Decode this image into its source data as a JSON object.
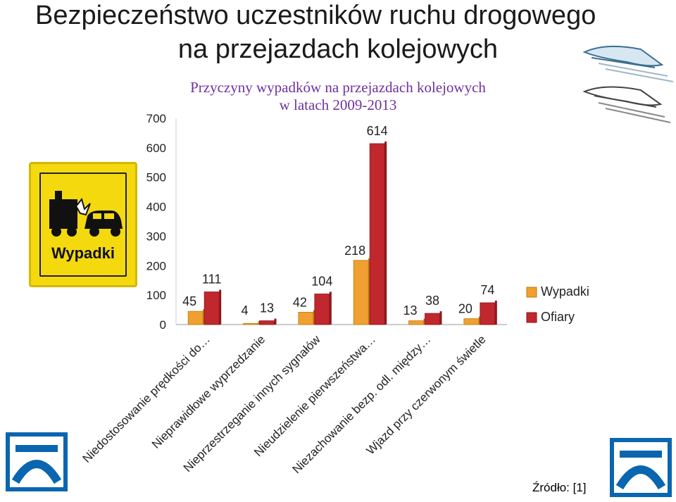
{
  "slide": {
    "title_line1": "Bezpieczeństwo uczestników ruchu drogowego",
    "title_line2": "na przejazdach kolejowych",
    "source": "Źródło: [1]",
    "sign_label": "Wypadki"
  },
  "icons": {
    "train_top": "train-icon",
    "train_bottom": "train-icon",
    "sign": "accident-sign-icon",
    "logo_left": "railway-logo-icon",
    "logo_right": "railway-logo-icon"
  },
  "colors": {
    "wypadki": "#f0a030",
    "ofiary": "#c0282e",
    "title": "#7030a0",
    "sign": "#f5d90f",
    "logo": "#0a66b0"
  },
  "chart_data": {
    "type": "bar",
    "title": "Przyczyny wypadków na przejazdach kolejowych w latach 2009-2013",
    "title_line1": "Przyczyny wypadków na przejazdach kolejowych",
    "title_line2": "w latach 2009-2013",
    "categories": [
      "Niedostosowanie prędkości do…",
      "Nieprawidłowe wyprzedzanie",
      "Nieprzestrzeganie innych sygnałów",
      "Nieudzielenie pierwszeństwa…",
      "Niezachowanie bezp. odl. między…",
      "Wjazd przy czerwonym świetle"
    ],
    "series": [
      {
        "name": "Wypadki",
        "values": [
          45,
          4,
          42,
          218,
          13,
          20
        ]
      },
      {
        "name": "Ofiary",
        "values": [
          111,
          13,
          104,
          614,
          38,
          74
        ]
      }
    ],
    "ylim": [
      0,
      700
    ],
    "yticks": [
      0,
      100,
      200,
      300,
      400,
      500,
      600,
      700
    ],
    "legend": "right"
  }
}
